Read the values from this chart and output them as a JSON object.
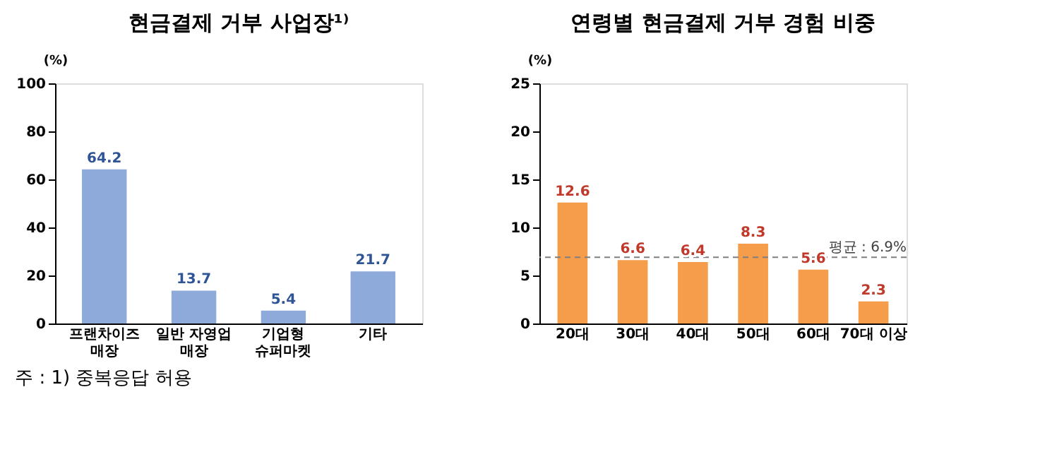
{
  "chart_data": [
    {
      "type": "bar",
      "title": "현금결제 거부 사업장¹⁾",
      "ylabel": "(%)",
      "categories": [
        "프랜차이즈\n매장",
        "일반 자영업\n매장",
        "기업형\n슈퍼마켓",
        "기타"
      ],
      "values": [
        64.2,
        13.7,
        5.4,
        21.7
      ],
      "color": "#8eaadb",
      "ylim": [
        0,
        100
      ],
      "yticks": [
        0,
        20,
        40,
        60,
        80,
        100
      ],
      "data_labels": true,
      "grid": false
    },
    {
      "type": "bar",
      "title": "연령별 현금결제 거부 경험 비중",
      "ylabel": "(%)",
      "categories": [
        "20대",
        "30대",
        "40대",
        "50대",
        "60대",
        "70대 이상"
      ],
      "values": [
        12.6,
        6.6,
        6.4,
        8.3,
        5.6,
        2.3
      ],
      "color": "#f59d4a",
      "ylim": [
        0,
        25
      ],
      "yticks": [
        0,
        5,
        10,
        15,
        20,
        25
      ],
      "data_labels": true,
      "grid": false,
      "ref_lines": [
        {
          "axis": "y",
          "value": 6.9,
          "label": "평균 : 6.9%",
          "color": "#7f7f7f",
          "line_style": "dashed"
        }
      ],
      "annotations": [
        "주 : 1) 중복응답 허용"
      ]
    }
  ]
}
